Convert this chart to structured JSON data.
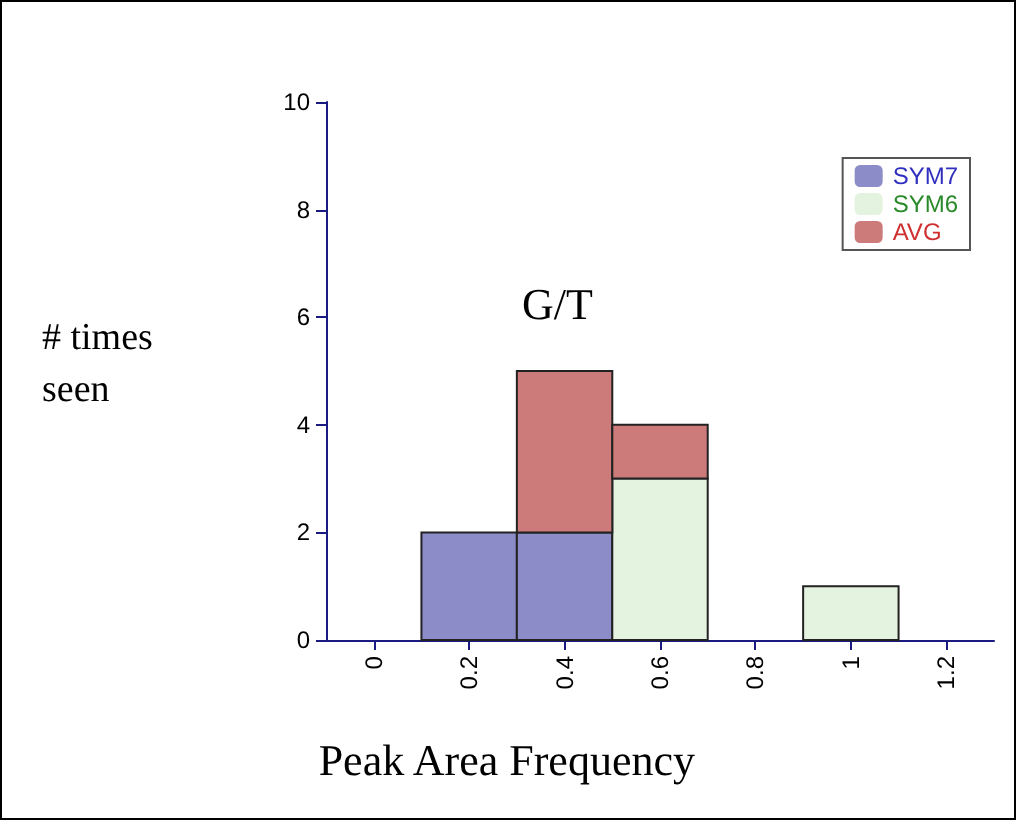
{
  "chart_data": {
    "type": "bar",
    "title": "G/T",
    "xlabel": "Peak Area Frequency",
    "ylabel": "# times seen",
    "x": [
      0.2,
      0.4,
      0.6,
      1
    ],
    "stacked": true,
    "series": [
      {
        "name": "SYM7",
        "color": "#8c8cc8",
        "values": [
          2,
          2,
          0,
          0
        ]
      },
      {
        "name": "SYM6",
        "color": "#e4f2e0",
        "values": [
          0,
          0,
          3,
          1
        ]
      },
      {
        "name": "AVG",
        "color": "#cc7a7a",
        "values": [
          0,
          3,
          1,
          0
        ]
      }
    ],
    "xlim": [
      -0.1,
      1.3
    ],
    "xticks": [
      0,
      0.2,
      0.4,
      0.6,
      0.8,
      1,
      1.2
    ],
    "ylim": [
      0,
      10
    ],
    "yticks": [
      0,
      2,
      4,
      6,
      8,
      10
    ],
    "grid": false,
    "legend": "top right"
  }
}
